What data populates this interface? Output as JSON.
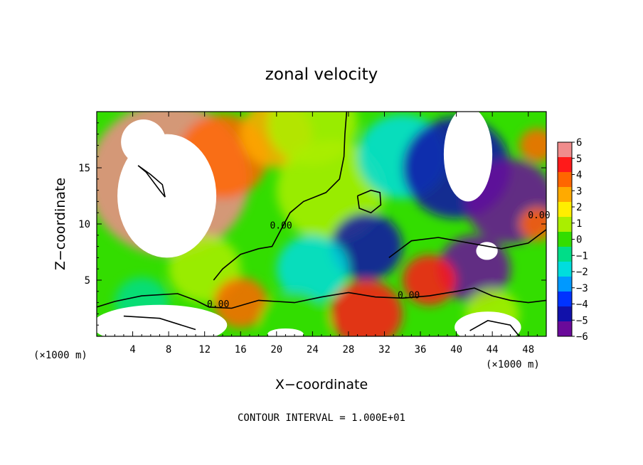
{
  "chart_data": {
    "type": "heatmap",
    "title": "zonal velocity",
    "xlabel": "X−coordinate",
    "ylabel": "Z−coordinate",
    "x_unit_left": "(×1000 m)",
    "x_unit_right": "(×1000 m)",
    "footnote": "CONTOUR INTERVAL = 1.000E+01",
    "xlim": [
      0,
      50
    ],
    "ylim": [
      0,
      20
    ],
    "x_ticks": [
      4,
      8,
      12,
      16,
      20,
      24,
      28,
      32,
      36,
      40,
      44,
      48
    ],
    "y_ticks": [
      5,
      10,
      15
    ],
    "colorbar": {
      "min": -6,
      "max": 6,
      "ticks": [
        "6",
        "5",
        "4",
        "3",
        "2",
        "1",
        "0",
        "−1",
        "−2",
        "−3",
        "−4",
        "−5",
        "−6"
      ],
      "colors": [
        "#f08c8c",
        "#ff1a1a",
        "#ff6600",
        "#ffaa00",
        "#ffee00",
        "#aaee00",
        "#33dd00",
        "#00dd88",
        "#00dddd",
        "#0099ff",
        "#0033ff",
        "#1111aa",
        "#6a0a9a"
      ]
    },
    "contour_labels": [
      {
        "text": "0.00",
        "x": 20.5,
        "y": 9.6
      },
      {
        "text": "0.00",
        "x": 13.5,
        "y": 2.6
      },
      {
        "text": "0.00",
        "x": 34.7,
        "y": 3.4
      },
      {
        "text": "0.00",
        "x": 49.2,
        "y": 10.5
      }
    ],
    "field_blobs": [
      {
        "x": 8,
        "y": 14,
        "v": 6.5,
        "r": 9
      },
      {
        "x": 14,
        "y": 16,
        "v": 4.5,
        "r": 5
      },
      {
        "x": 20,
        "y": 18,
        "v": 3.0,
        "r": 4
      },
      {
        "x": 24,
        "y": 19,
        "v": 1.5,
        "r": 5
      },
      {
        "x": 26,
        "y": 13,
        "v": 0.6,
        "r": 6
      },
      {
        "x": 34,
        "y": 16,
        "v": -2.0,
        "r": 5
      },
      {
        "x": 40,
        "y": 15,
        "v": -4.5,
        "r": 6
      },
      {
        "x": 46,
        "y": 12,
        "v": -5.5,
        "r": 5
      },
      {
        "x": 30,
        "y": 8,
        "v": -4.5,
        "r": 4
      },
      {
        "x": 42,
        "y": 6,
        "v": -6.0,
        "r": 4
      },
      {
        "x": 24,
        "y": 6,
        "v": -2.0,
        "r": 4
      },
      {
        "x": 12,
        "y": 6,
        "v": 1.0,
        "r": 4
      },
      {
        "x": 5,
        "y": 3,
        "v": -0.5,
        "r": 3
      },
      {
        "x": 16,
        "y": 3,
        "v": 4.5,
        "r": 3
      },
      {
        "x": 22,
        "y": 1,
        "v": 0.5,
        "r": 4
      },
      {
        "x": 30,
        "y": 2,
        "v": 5.5,
        "r": 4
      },
      {
        "x": 37,
        "y": 5,
        "v": 5.0,
        "r": 3
      },
      {
        "x": 44,
        "y": 2,
        "v": 1.5,
        "r": 3
      },
      {
        "x": 49,
        "y": 17,
        "v": 4.0,
        "r": 2
      },
      {
        "x": 49,
        "y": 10,
        "v": 4.5,
        "r": 2
      }
    ],
    "masked_regions": [
      {
        "cx": 7.8,
        "cy": 12.5,
        "rx": 5.5,
        "ry": 5.5
      },
      {
        "cx": 5.2,
        "cy": 17.3,
        "rx": 2.5,
        "ry": 2.0
      },
      {
        "cx": 41.3,
        "cy": 16.2,
        "rx": 2.7,
        "ry": 4.2
      },
      {
        "cx": 43.4,
        "cy": 7.6,
        "rx": 1.2,
        "ry": 0.8
      },
      {
        "cx": 7.0,
        "cy": 1.0,
        "rx": 7.5,
        "ry": 1.8
      },
      {
        "cx": 21.0,
        "cy": 0.2,
        "rx": 2.0,
        "ry": 0.5
      },
      {
        "cx": 43.5,
        "cy": 0.8,
        "rx": 3.7,
        "ry": 1.4
      }
    ],
    "zero_contours": [
      [
        [
          0,
          2.6
        ],
        [
          2,
          3.1
        ],
        [
          5,
          3.6
        ],
        [
          9,
          3.8
        ],
        [
          11,
          3.2
        ],
        [
          12.5,
          2.6
        ],
        [
          15,
          2.5
        ],
        [
          18,
          3.2
        ],
        [
          22,
          3.0
        ],
        [
          25,
          3.5
        ],
        [
          28,
          3.9
        ],
        [
          31,
          3.5
        ],
        [
          34,
          3.4
        ],
        [
          37,
          3.6
        ],
        [
          40,
          4.0
        ],
        [
          42,
          4.3
        ],
        [
          44,
          3.6
        ],
        [
          46,
          3.2
        ],
        [
          48,
          3.0
        ],
        [
          50,
          3.2
        ]
      ],
      [
        [
          13,
          5.0
        ],
        [
          14,
          6.0
        ],
        [
          16,
          7.3
        ],
        [
          18,
          7.8
        ],
        [
          19.5,
          8.0
        ],
        [
          20.5,
          9.5
        ],
        [
          21.5,
          11.0
        ],
        [
          23,
          12.0
        ],
        [
          25.5,
          12.8
        ],
        [
          27,
          14.0
        ],
        [
          27.5,
          16.0
        ],
        [
          27.6,
          18.0
        ],
        [
          27.8,
          20.0
        ]
      ],
      [
        [
          29,
          12.5
        ],
        [
          30.5,
          13.0
        ],
        [
          31.5,
          12.8
        ],
        [
          31.6,
          11.7
        ],
        [
          30.5,
          11.0
        ],
        [
          29.2,
          11.4
        ],
        [
          29,
          12.5
        ]
      ],
      [
        [
          32.5,
          7.0
        ],
        [
          35,
          8.5
        ],
        [
          38,
          8.8
        ],
        [
          41.5,
          8.3
        ],
        [
          45,
          7.8
        ],
        [
          48,
          8.3
        ],
        [
          50,
          9.5
        ]
      ],
      [
        [
          4.6,
          15.2
        ],
        [
          5.5,
          14.6
        ],
        [
          7.0,
          13.0
        ],
        [
          7.6,
          12.4
        ],
        [
          7.3,
          13.5
        ],
        [
          6.0,
          14.4
        ],
        [
          4.6,
          15.2
        ]
      ],
      [
        [
          3,
          1.8
        ],
        [
          7,
          1.6
        ],
        [
          11,
          0.6
        ]
      ],
      [
        [
          41.5,
          0.5
        ],
        [
          43.5,
          1.4
        ],
        [
          46,
          1.0
        ],
        [
          47,
          0.0
        ]
      ]
    ]
  }
}
